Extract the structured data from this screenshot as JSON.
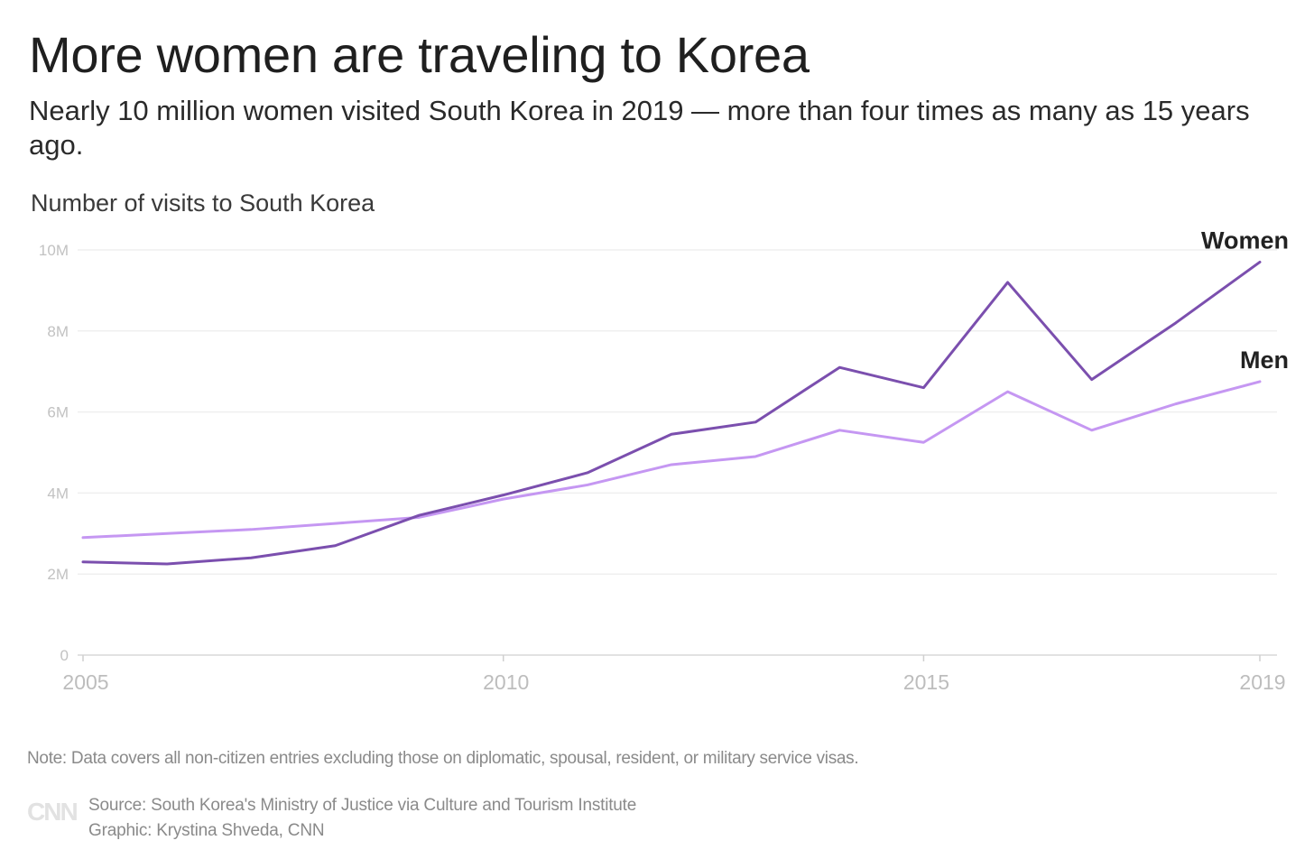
{
  "header": {
    "title": "More women are traveling to Korea",
    "subtitle": "Nearly 10 million women visited South Korea in 2019 — more than four times as many as 15 years ago."
  },
  "chart_data": {
    "type": "line",
    "ylabel": "Number of visits to South Korea",
    "xlabel": "",
    "x": [
      2005,
      2006,
      2007,
      2008,
      2009,
      2010,
      2011,
      2012,
      2013,
      2014,
      2015,
      2016,
      2017,
      2018,
      2019
    ],
    "xticks": [
      2005,
      2010,
      2015,
      2019
    ],
    "yticks": [
      0,
      2000000,
      4000000,
      6000000,
      8000000,
      10000000
    ],
    "ytick_labels": [
      "0",
      "2M",
      "4M",
      "6M",
      "8M",
      "10M"
    ],
    "ylim": [
      0,
      10000000
    ],
    "grid": true,
    "series": [
      {
        "name": "Women",
        "color": "#7b4fae",
        "values": [
          2300000,
          2250000,
          2400000,
          2700000,
          3450000,
          3950000,
          4500000,
          5450000,
          5750000,
          7100000,
          6600000,
          9200000,
          6800000,
          8200000,
          9700000
        ]
      },
      {
        "name": "Men",
        "color": "#c597f2",
        "values": [
          2900000,
          3000000,
          3100000,
          3250000,
          3400000,
          3850000,
          4200000,
          4700000,
          4900000,
          5550000,
          5250000,
          6500000,
          5550000,
          6200000,
          6750000
        ]
      }
    ]
  },
  "footer": {
    "note": "Note: Data covers all non-citizen entries excluding those on diplomatic, spousal, resident, or military service visas.",
    "logo": "CNN",
    "source": "Source: South Korea's Ministry of Justice via Culture and Tourism Institute",
    "graphic": "Graphic: Krystina Shveda, CNN"
  }
}
